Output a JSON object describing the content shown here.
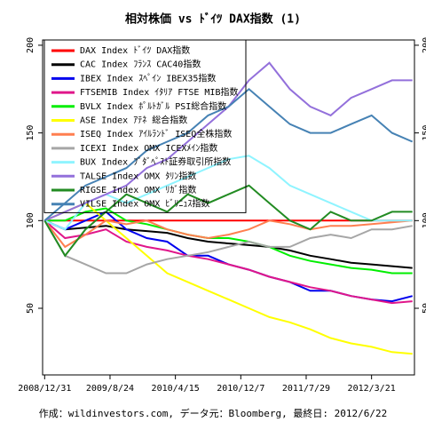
{
  "chart_data": {
    "type": "line",
    "title": "相対株価 vs ﾄﾞｲﾂ DAX指数 (1)",
    "footer": "作成：wildinvestors.com, データ元：Bloomberg, 最終日: 2012/6/22",
    "x": [
      0,
      50,
      100,
      150,
      200,
      250,
      300,
      350,
      400,
      450,
      500,
      550,
      600,
      650,
      700,
      750,
      800,
      850,
      900
    ],
    "xlim": [
      -5,
      905
    ],
    "xticks": [
      {
        "value": 0,
        "label": "2008/12/31"
      },
      {
        "value": 160,
        "label": "2009/8/24"
      },
      {
        "value": 320,
        "label": "2010/4/15"
      },
      {
        "value": 480,
        "label": "2010/12/7"
      },
      {
        "value": 640,
        "label": "2011/7/29"
      },
      {
        "value": 800,
        "label": "2012/3/21"
      }
    ],
    "ylim": [
      12,
      203
    ],
    "yticks": [
      50,
      100,
      150,
      200
    ],
    "y2lim": [
      12,
      203
    ],
    "y2ticks": [
      50,
      100,
      150,
      200
    ],
    "legend": "top-left",
    "series": [
      {
        "name": "DAX Index ﾄﾞｲﾂ DAX指数",
        "color": "#ff0000",
        "values": [
          100,
          100,
          100,
          100,
          100,
          100,
          100,
          100,
          100,
          100,
          100,
          100,
          100,
          100,
          100,
          100,
          100,
          100,
          100
        ]
      },
      {
        "name": "CAC Index ﾌﾗﾝｽ CAC40指数",
        "color": "#000000",
        "values": [
          100,
          95,
          96,
          97,
          95,
          94,
          93,
          90,
          88,
          87,
          86,
          85,
          83,
          80,
          78,
          76,
          75,
          74,
          73
        ]
      },
      {
        "name": "IBEX Index ｽﾍﾟｲﾝ IBEX35指数",
        "color": "#0000ee",
        "values": [
          100,
          95,
          100,
          105,
          95,
          90,
          88,
          80,
          80,
          75,
          72,
          68,
          65,
          60,
          60,
          57,
          55,
          54,
          57
        ]
      },
      {
        "name": "FTSEMIB Index ｲﾀﾘｱ FTSE MIB指数",
        "color": "#e0168a",
        "values": [
          100,
          90,
          92,
          95,
          88,
          85,
          83,
          80,
          78,
          75,
          72,
          68,
          65,
          62,
          60,
          57,
          55,
          53,
          54
        ]
      },
      {
        "name": "BVLX Index ﾎﾟﾙﾄｶﾞﾙ PSI総合指数",
        "color": "#00ee00",
        "values": [
          100,
          100,
          105,
          107,
          100,
          98,
          95,
          92,
          90,
          90,
          88,
          85,
          80,
          77,
          75,
          73,
          72,
          70,
          70
        ]
      },
      {
        "name": "ASE Index ｱﾃﾈ 総合指数",
        "color": "#ffff00",
        "values": [
          100,
          105,
          110,
          100,
          90,
          80,
          70,
          65,
          60,
          55,
          50,
          45,
          42,
          38,
          33,
          30,
          28,
          25,
          24
        ]
      },
      {
        "name": "ISEQ Index ｱｲﾙﾗﾝﾄﾞ ISEQ全株指数",
        "color": "#ff7f50",
        "values": [
          100,
          85,
          92,
          100,
          98,
          100,
          95,
          92,
          90,
          92,
          95,
          100,
          98,
          95,
          97,
          97,
          98,
          99,
          100
        ]
      },
      {
        "name": "ICEXI Index OMX ICEXﾒｲﾝ指数",
        "color": "#a6a6a6",
        "values": [
          100,
          80,
          75,
          70,
          70,
          75,
          78,
          80,
          82,
          85,
          88,
          85,
          85,
          90,
          92,
          90,
          95,
          95,
          97
        ]
      },
      {
        "name": "BUX Index ﾌﾞﾀﾞﾍﾟｽﾄ証券取引所指数",
        "color": "#8ff4ff",
        "values": [
          100,
          95,
          110,
          115,
          110,
          115,
          120,
          125,
          130,
          135,
          137,
          130,
          120,
          115,
          110,
          105,
          100,
          100,
          100
        ]
      },
      {
        "name": "TALSE Index OMX ﾀﾘﾝ指数",
        "color": "#9370db",
        "values": [
          100,
          105,
          110,
          115,
          120,
          130,
          135,
          145,
          155,
          165,
          180,
          190,
          175,
          165,
          160,
          170,
          175,
          180,
          180
        ]
      },
      {
        "name": "RIGSE Index OMX ﾘｶﾞ指数",
        "color": "#228b22",
        "values": [
          100,
          80,
          95,
          105,
          115,
          110,
          105,
          115,
          110,
          115,
          120,
          110,
          100,
          95,
          105,
          100,
          100,
          105,
          105
        ]
      },
      {
        "name": "VILSE Index OMX ﾋﾞﾘﾆｭｽ指数",
        "color": "#4682b4",
        "values": [
          100,
          110,
          120,
          125,
          130,
          140,
          145,
          150,
          160,
          165,
          175,
          165,
          155,
          150,
          150,
          155,
          160,
          150,
          145
        ]
      }
    ]
  }
}
